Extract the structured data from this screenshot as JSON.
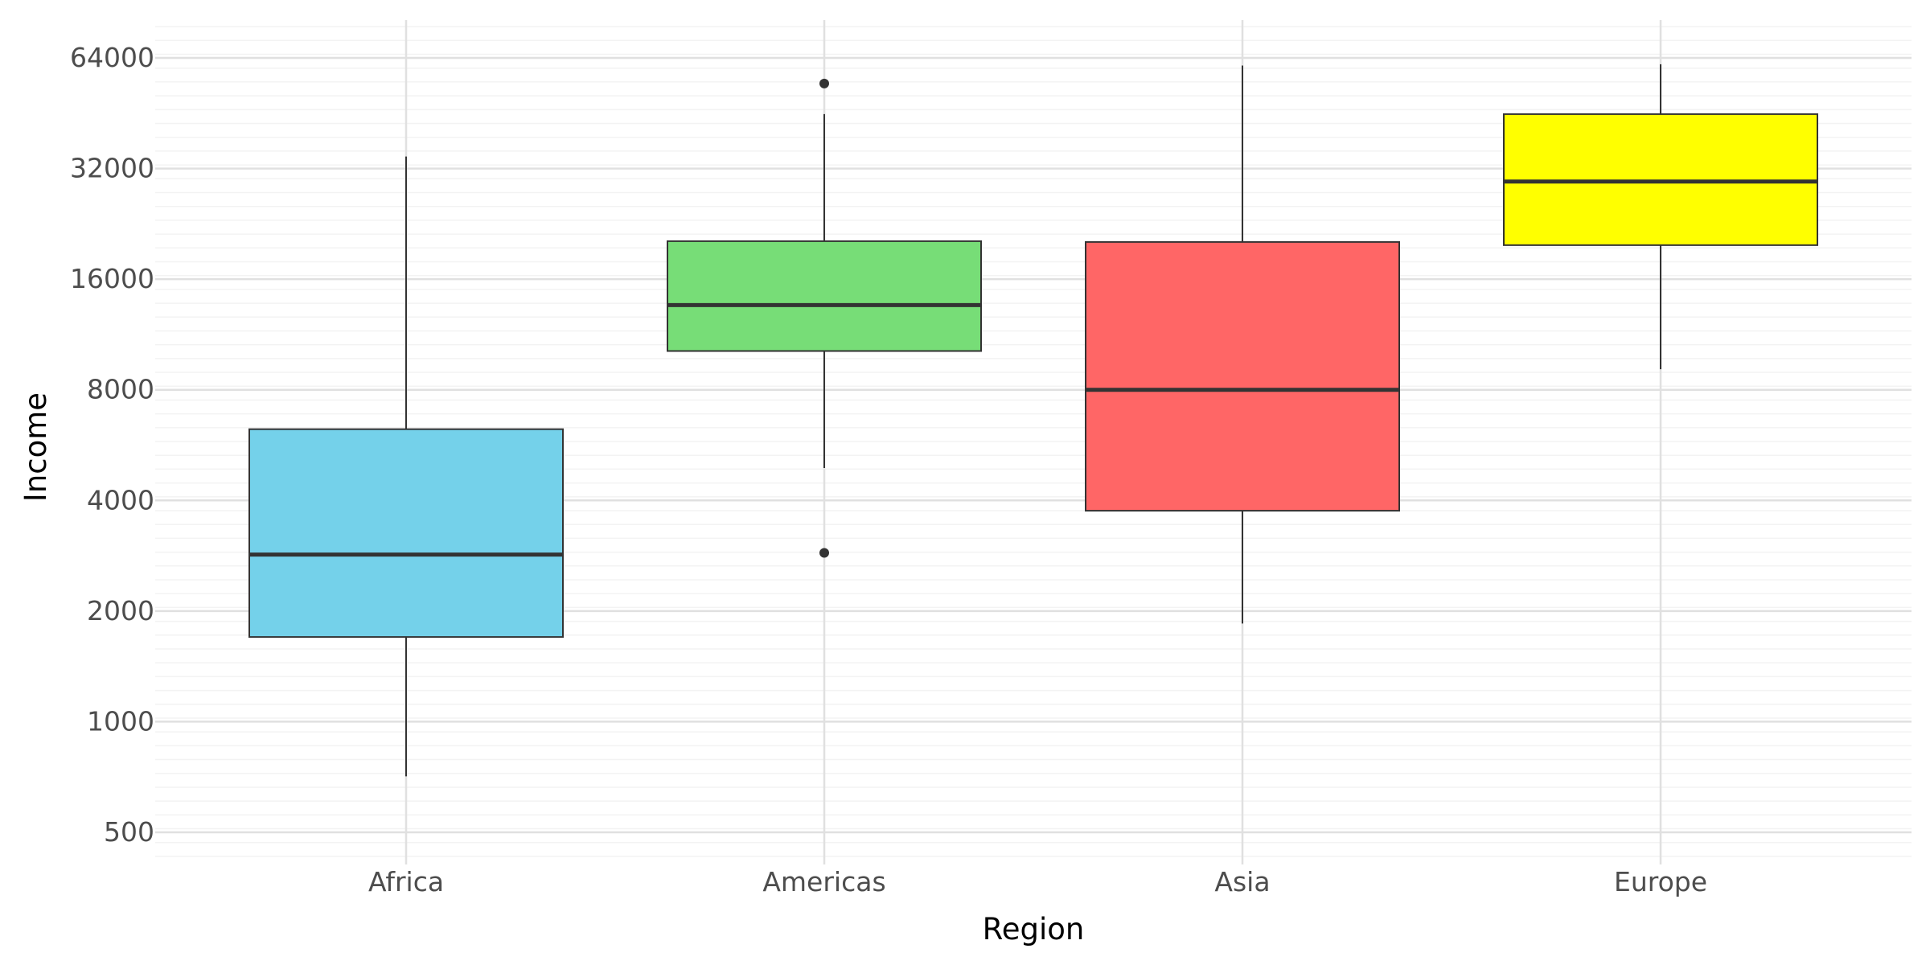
{
  "chart_data": {
    "type": "box",
    "title": "",
    "xlabel": "Region",
    "ylabel": "Income",
    "y_scale": "log2",
    "ylim": [
      430,
      81000
    ],
    "yticks": [
      500,
      1000,
      2000,
      4000,
      8000,
      16000,
      32000,
      64000
    ],
    "ytick_labels": [
      "500",
      "1000",
      "2000",
      "4000",
      "8000",
      "16000",
      "32000",
      "64000"
    ],
    "grid": true,
    "legend": "none",
    "categories": [
      "Africa",
      "Americas",
      "Asia",
      "Europe"
    ],
    "boxes": [
      {
        "category": "Africa",
        "whisker_low": 710,
        "q1": 1700,
        "median": 2850,
        "q3": 6250,
        "whisker_high": 34500,
        "outliers": [],
        "color": "#74D1EA"
      },
      {
        "category": "Americas",
        "whisker_low": 4900,
        "q1": 10200,
        "median": 13600,
        "q3": 20300,
        "whisker_high": 45000,
        "outliers": [
          2880,
          54500
        ],
        "color": "#77DD77"
      },
      {
        "category": "Asia",
        "whisker_low": 1850,
        "q1": 3750,
        "median": 8000,
        "q3": 20200,
        "whisker_high": 61000,
        "outliers": [],
        "color": "#FF6666"
      },
      {
        "category": "Europe",
        "whisker_low": 9100,
        "q1": 19800,
        "median": 29500,
        "q3": 45000,
        "whisker_high": 61500,
        "outliers": [],
        "color": "#FFFF00"
      }
    ]
  }
}
